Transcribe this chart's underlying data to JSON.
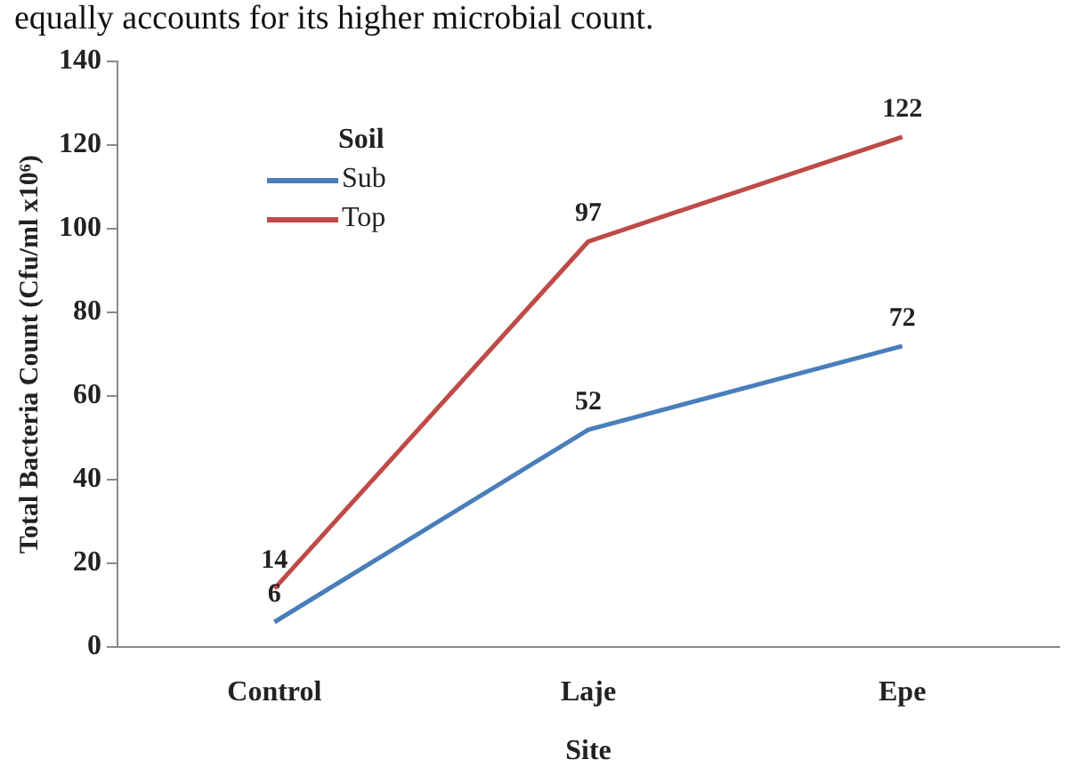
{
  "chart_data": {
    "type": "line",
    "annotations": [
      "equally accounts for its higher microbial count."
    ],
    "xlabel": "Site",
    "ylabel": "Total Bacteria Count (Cfu/ml x10⁶)",
    "legend_title": "Soil",
    "categories": [
      "Control",
      "Laje",
      "Epe"
    ],
    "series": [
      {
        "name": "Sub",
        "color": "#4a7ebb",
        "values": [
          6,
          52,
          72
        ]
      },
      {
        "name": "Top",
        "color": "#be4b48",
        "values": [
          14,
          97,
          122
        ]
      }
    ],
    "ylim": [
      0,
      140
    ],
    "yticks": [
      0,
      20,
      40,
      60,
      80,
      100,
      120,
      140
    ],
    "grid": false,
    "legend": "top left",
    "marker": "none",
    "line_style": "solid",
    "data_labels": true
  }
}
